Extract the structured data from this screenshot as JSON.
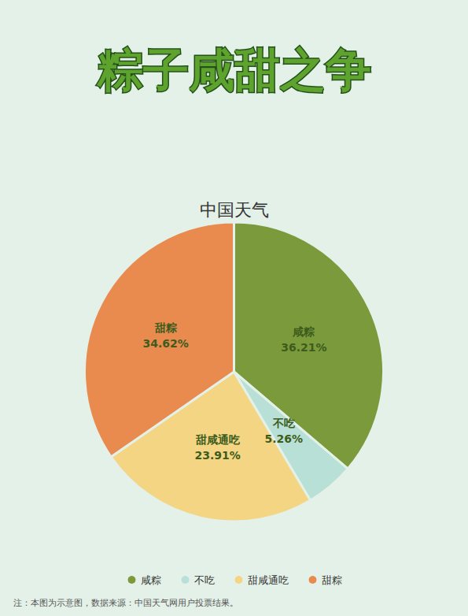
{
  "chart_data": {
    "type": "pie",
    "title": "粽子咸甜之争",
    "subtitle": "中国天气",
    "categories": [
      "咸粽",
      "不吃",
      "甜咸通吃",
      "甜粽"
    ],
    "values": [
      36.21,
      5.26,
      23.91,
      34.62
    ],
    "value_labels": [
      "36.21%",
      "5.26%",
      "23.91%",
      "34.62%"
    ],
    "colors": [
      "#7b9a3b",
      "#b8e0d6",
      "#f3d584",
      "#e98b4f"
    ],
    "data_labels": true,
    "legend": "bottom",
    "annotations": [
      "注：本图为示意图，数据来源：中国天气网用户投票结果。"
    ]
  }
}
